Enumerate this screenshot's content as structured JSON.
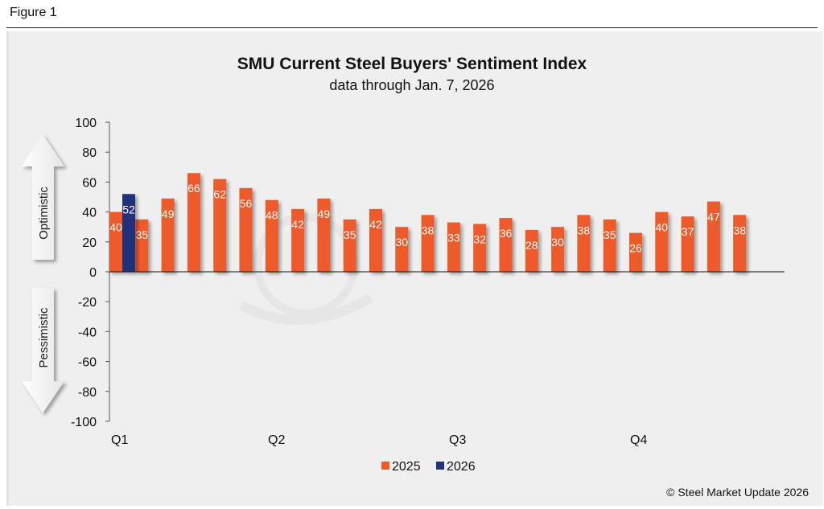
{
  "figure_label": "Figure 1",
  "copyright": "© Steel Market Update 2026",
  "watermark": "Steel Market Update",
  "colors": {
    "series_2025": "#ee5a2a",
    "series_2026": "#22337a",
    "background": "#efefef"
  },
  "arrows": {
    "up_label": "Optimistic",
    "down_label": "Pessimistic"
  },
  "chart_data": {
    "type": "bar",
    "title": "SMU Current Steel Buyers' Sentiment Index",
    "subtitle": "data through Jan. 7, 2026",
    "xlabel": "",
    "ylabel": "",
    "ylim": [
      -100,
      100
    ],
    "yticks": [
      100,
      80,
      60,
      40,
      20,
      0,
      -20,
      -40,
      -60,
      -80,
      -100
    ],
    "quarter_labels": [
      "Q1",
      "Q2",
      "Q3",
      "Q4"
    ],
    "grid": false,
    "legend_placement": "bottom",
    "data_labels": true,
    "series": [
      {
        "name": "2025",
        "values": [
          40,
          35,
          49,
          66,
          62,
          56,
          48,
          42,
          49,
          35,
          42,
          30,
          38,
          33,
          32,
          36,
          28,
          30,
          38,
          35,
          26,
          40,
          37,
          47,
          38
        ]
      },
      {
        "name": "2026",
        "values": [
          52
        ]
      }
    ]
  }
}
